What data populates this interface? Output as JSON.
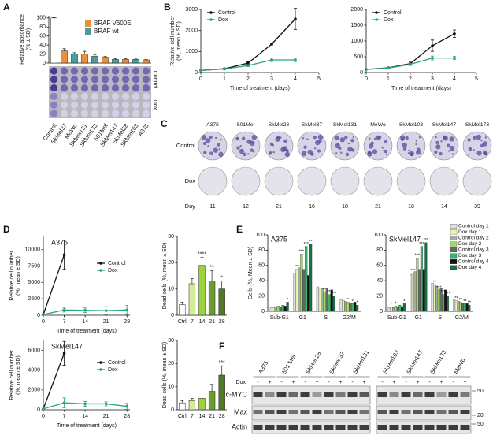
{
  "panel_labels": [
    "A",
    "B",
    "C",
    "D",
    "E",
    "F"
  ],
  "chart_data": [
    {
      "type": "bar",
      "ylabel": [
        "Relative absorbance",
        "(% ± SD)"
      ],
      "categories": [
        "Control",
        "SkMel37",
        "MeWo",
        "SkMel131",
        "SkMel173",
        "501Mel",
        "SkMel147",
        "SkMel28",
        "SkMel103",
        "A375"
      ],
      "values": [
        100,
        27,
        20,
        20,
        15,
        13,
        8,
        8,
        8,
        7
      ],
      "errors": [
        1,
        5,
        3,
        6,
        3,
        2,
        2,
        2,
        1,
        1
      ],
      "colors": [
        "#ffffff",
        "#e8903c",
        "#4b9c9a",
        "#e8903c",
        "#4b9c9a",
        "#e8903c",
        "#4b9c9a",
        "#e8903c",
        "#4b9c9a",
        "#e8903c"
      ],
      "legend": [
        {
          "name": "BRAF V600E",
          "color": "#e8903c"
        },
        {
          "name": "BRAF wt",
          "color": "#4b9c9a"
        }
      ],
      "ylim": [
        0,
        105
      ],
      "yticks": [
        0,
        20,
        40,
        60,
        80,
        100
      ]
    },
    {
      "type": "line",
      "xlabel": "Time of treatment (days)",
      "ylabel": [
        "Relative cell number",
        "(%, mean ± SD)"
      ],
      "x": [
        0,
        1,
        2,
        3,
        4
      ],
      "xlim": [
        0,
        5
      ],
      "xticks": [
        0,
        1,
        2,
        3,
        4,
        5
      ],
      "ylim": [
        0,
        3000
      ],
      "yticks": [
        0,
        1000,
        2000,
        3000
      ],
      "legend": "upper left",
      "series": [
        {
          "name": "Control",
          "color": "#111111",
          "values": [
            100,
            180,
            450,
            1350,
            2550
          ],
          "errors": [
            null,
            30,
            60,
            40,
            500
          ]
        },
        {
          "name": "Dox",
          "color": "#26a67a",
          "values": [
            100,
            170,
            330,
            600,
            600
          ],
          "errors": [
            null,
            20,
            40,
            80,
            80
          ]
        }
      ]
    },
    {
      "type": "line",
      "xlabel": "Time of treatment (days)",
      "x": [
        0,
        1,
        2,
        3,
        4
      ],
      "xlim": [
        0,
        5
      ],
      "xticks": [
        0,
        1,
        2,
        3,
        4,
        5
      ],
      "ylim": [
        0,
        2000
      ],
      "yticks": [
        0,
        500,
        1000,
        1500,
        2000
      ],
      "legend": "upper left",
      "series": [
        {
          "name": "Control",
          "color": "#111111",
          "values": [
            100,
            150,
            280,
            850,
            1230
          ],
          "errors": [
            null,
            20,
            50,
            180,
            120
          ]
        },
        {
          "name": "Dox",
          "color": "#26a67a",
          "values": [
            100,
            140,
            260,
            460,
            460
          ],
          "errors": [
            null,
            20,
            30,
            60,
            50
          ]
        }
      ]
    },
    {
      "type": "line",
      "title": "A375",
      "title_color": "#e8903c",
      "xlabel": "Time of treatment (days)",
      "ylabel": [
        "Relative cell number",
        "(%, mean ± SD)"
      ],
      "x": [
        0,
        7,
        14,
        21,
        28
      ],
      "xlim": [
        0,
        29
      ],
      "xticks": [
        0,
        7,
        14,
        21,
        28
      ],
      "ylim": [
        0,
        12000
      ],
      "yticks": [
        0,
        2500,
        5000,
        7500,
        10000
      ],
      "legend": "center right",
      "series": [
        {
          "name": "Control",
          "color": "#111111",
          "values": [
            100,
            9200,
            null,
            null,
            null
          ],
          "errors": [
            null,
            2200,
            null,
            null,
            null
          ]
        },
        {
          "name": "Dox",
          "color": "#26a67a",
          "values": [
            100,
            800,
            750,
            700,
            800
          ],
          "errors": [
            null,
            300,
            350,
            600,
            700
          ]
        }
      ]
    },
    {
      "type": "bar",
      "ylabel": "Dead cells (%, mean ± SD)",
      "categories": [
        "Ctrl",
        "7",
        "14",
        "21",
        "28"
      ],
      "values": [
        4,
        12,
        19,
        13,
        10
      ],
      "errors": [
        1,
        2,
        3,
        4,
        3
      ],
      "colors": [
        "#ffffff",
        "#d4ec9a",
        "#9bd33a",
        "#6e9b2a",
        "#4e7a24"
      ],
      "significance": [
        null,
        null,
        "****",
        "**",
        "*"
      ],
      "ylim": [
        0,
        30
      ],
      "yticks": [
        0,
        10,
        20,
        30
      ]
    },
    {
      "type": "line",
      "title": "SkMel147",
      "title_color": "#4b9c9a",
      "xlabel": "Time of treatment (days)",
      "ylabel": [
        "Relative cell number",
        "(%, mean ± SD)"
      ],
      "x": [
        0,
        7,
        14,
        21,
        28
      ],
      "xlim": [
        0,
        29
      ],
      "xticks": [
        0,
        7,
        14,
        21,
        28
      ],
      "ylim": [
        0,
        7000
      ],
      "yticks": [
        0,
        2000,
        4000,
        6000
      ],
      "legend": "center right",
      "series": [
        {
          "name": "Control",
          "color": "#111111",
          "values": [
            100,
            5700,
            null,
            null,
            null
          ],
          "errors": [
            null,
            1200,
            null,
            null,
            null
          ]
        },
        {
          "name": "Dox",
          "color": "#26a67a",
          "values": [
            100,
            700,
            600,
            600,
            350
          ],
          "errors": [
            null,
            500,
            250,
            200,
            300
          ]
        }
      ]
    },
    {
      "type": "bar",
      "ylabel": "Dead cells (%, mean ± SD)",
      "categories": [
        "Ctrl",
        "7",
        "14",
        "21",
        "28"
      ],
      "values": [
        3,
        4,
        5,
        8,
        15
      ],
      "errors": [
        1,
        1,
        1,
        3,
        4
      ],
      "colors": [
        "#ffffff",
        "#d4ec9a",
        "#9bd33a",
        "#6e9b2a",
        "#4e7a24"
      ],
      "significance": [
        null,
        null,
        null,
        null,
        "***"
      ],
      "ylim": [
        0,
        30
      ],
      "yticks": [
        0,
        10,
        20,
        30
      ]
    },
    {
      "type": "groupedbar",
      "title": "A375",
      "title_color": "#e8903c",
      "ylabel": "Cells (%, Mean ± SD)",
      "categories": [
        "Sub-G1",
        "G1",
        "S",
        "G2/M"
      ],
      "ylim": [
        0,
        100
      ],
      "yticks": [
        0,
        20,
        40,
        60,
        80,
        100
      ],
      "series": [
        {
          "name": "Control day 1",
          "color": "#e0e0e0",
          "values": [
            5,
            50,
            32,
            15
          ]
        },
        {
          "name": "Dox day 1",
          "color": "#e6f4b0",
          "values": [
            5,
            55,
            30,
            14
          ],
          "significance": [
            null,
            "***",
            null,
            null
          ]
        },
        {
          "name": "Control day 2",
          "color": "#a8a8a8",
          "values": [
            6,
            57,
            30,
            13
          ]
        },
        {
          "name": "Dox day 2",
          "color": "#9be05a",
          "values": [
            7,
            75,
            25,
            12
          ],
          "significance": [
            null,
            "***",
            "***",
            "*"
          ]
        },
        {
          "name": "Control day 3",
          "color": "#666666",
          "values": [
            6,
            55,
            30,
            11
          ]
        },
        {
          "name": "Dox day 3",
          "color": "#2fb86a",
          "values": [
            8,
            85,
            22,
            10
          ],
          "significance": [
            null,
            "***",
            "***",
            "*"
          ]
        },
        {
          "name": "Control day 4",
          "color": "#111111",
          "values": [
            7,
            47,
            28,
            12
          ]
        },
        {
          "name": "Dox day 4",
          "color": "#1a6e46",
          "values": [
            12,
            88,
            20,
            8
          ],
          "significance": [
            "*",
            "**",
            "***",
            "*"
          ]
        }
      ]
    },
    {
      "type": "groupedbar",
      "title": "SkMel147",
      "title_color": "#4b9c9a",
      "categories": [
        "Sub-G1",
        "G1",
        "S",
        "G2/M"
      ],
      "ylim": [
        0,
        100
      ],
      "yticks": [
        0,
        20,
        40,
        60,
        80,
        100
      ],
      "series": [
        {
          "color": "#e0e0e0",
          "values": [
            5,
            48,
            37,
            15
          ]
        },
        {
          "color": "#e6f4b0",
          "values": [
            6,
            50,
            35,
            14
          ],
          "significance": [
            "*",
            "***",
            "**",
            "**"
          ]
        },
        {
          "color": "#a8a8a8",
          "values": [
            5,
            52,
            33,
            13
          ]
        },
        {
          "color": "#9be05a",
          "values": [
            7,
            70,
            28,
            12
          ],
          "significance": [
            "*",
            "***",
            "***",
            "**"
          ]
        },
        {
          "color": "#666666",
          "values": [
            5,
            55,
            30,
            11
          ]
        },
        {
          "color": "#2fb86a",
          "values": [
            8,
            85,
            22,
            10
          ],
          "significance": [
            null,
            "***",
            "***",
            "**"
          ]
        },
        {
          "color": "#111111",
          "values": [
            6,
            55,
            28,
            10
          ]
        },
        {
          "color": "#1a6e46",
          "values": [
            10,
            90,
            20,
            8
          ],
          "significance": [
            "*",
            "***",
            "***",
            "**"
          ]
        }
      ]
    }
  ],
  "panel_a_plate": {
    "rows": [
      "Control",
      "Dox"
    ]
  },
  "panel_c": {
    "cell_lines": [
      "A375",
      "501Mel",
      "SkMel28",
      "SkMel37",
      "SkMel131",
      "MeWo",
      "SkMel103",
      "SkMel147",
      "SkMel173"
    ],
    "colors": [
      "#e8903c",
      "#e8903c",
      "#e8903c",
      "#e8903c",
      "#e8903c",
      "#4b9c9a",
      "#4b9c9a",
      "#4b9c9a",
      "#4b9c9a"
    ],
    "rows": [
      "Control",
      "Dox"
    ],
    "day_label": "Day",
    "days": [
      11,
      12,
      21,
      16,
      18,
      21,
      18,
      14,
      39
    ]
  },
  "panel_f": {
    "cell_lines": [
      "A375",
      "501 Mel",
      "SkMel 28",
      "SkMel 37",
      "SkMel131",
      "SkMel103",
      "SkMel147",
      "SkMel173",
      "MeWo"
    ],
    "colors": [
      "#e8903c",
      "#e8903c",
      "#e8903c",
      "#e8903c",
      "#e8903c",
      "#4b9c9a",
      "#4b9c9a",
      "#4b9c9a",
      "#4b9c9a"
    ],
    "treatment_label": "Dox",
    "treatments": [
      "-",
      "+"
    ],
    "rows": [
      "c-MYC",
      "Max",
      "Actin"
    ],
    "markers": [
      50,
      20,
      50
    ]
  }
}
